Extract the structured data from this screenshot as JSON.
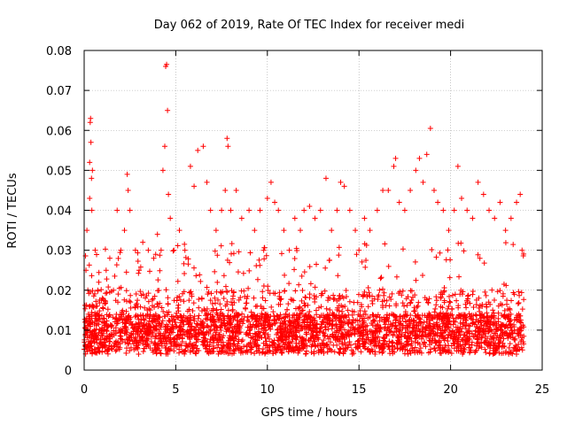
{
  "chart_data": {
    "type": "scatter",
    "title": "Day 062 of 2019, Rate Of TEC Index for receiver medi",
    "xlabel": "GPS time / hours",
    "ylabel": "ROTI / TECUs",
    "xlim": [
      0,
      25
    ],
    "ylim": [
      0,
      0.08
    ],
    "xticks": [
      0,
      5,
      10,
      15,
      20,
      25
    ],
    "xtick_labels": [
      "0",
      "5",
      "10",
      "15",
      "20",
      "25"
    ],
    "yticks": [
      0,
      0.01,
      0.02,
      0.03,
      0.04,
      0.05,
      0.06,
      0.07,
      0.08
    ],
    "ytick_labels": [
      "0",
      "0.01",
      "0.02",
      "0.03",
      "0.04",
      "0.05",
      "0.06",
      "0.07",
      "0.08"
    ],
    "grid": true,
    "marker": "+",
    "color": "#ff0000",
    "series": [
      {
        "name": "ROTI",
        "points": [
          [
            0.05,
            0.012
          ],
          [
            0.1,
            0.025
          ],
          [
            0.15,
            0.035
          ],
          [
            0.2,
            0.02
          ],
          [
            0.3,
            0.043
          ],
          [
            0.3,
            0.052
          ],
          [
            0.33,
            0.062
          ],
          [
            0.35,
            0.063
          ],
          [
            0.37,
            0.057
          ],
          [
            0.4,
            0.048
          ],
          [
            0.42,
            0.04
          ],
          [
            0.45,
            0.05
          ],
          [
            0.6,
            0.03
          ],
          [
            0.8,
            0.022
          ],
          [
            1.0,
            0.018
          ],
          [
            1.2,
            0.025
          ],
          [
            1.4,
            0.028
          ],
          [
            1.6,
            0.02
          ],
          [
            1.8,
            0.04
          ],
          [
            2.0,
            0.03
          ],
          [
            2.2,
            0.035
          ],
          [
            2.35,
            0.049
          ],
          [
            2.4,
            0.045
          ],
          [
            2.5,
            0.04
          ],
          [
            2.8,
            0.03
          ],
          [
            3.0,
            0.025
          ],
          [
            3.2,
            0.032
          ],
          [
            3.5,
            0.03
          ],
          [
            3.8,
            0.028
          ],
          [
            4.0,
            0.034
          ],
          [
            4.2,
            0.03
          ],
          [
            4.3,
            0.05
          ],
          [
            4.4,
            0.056
          ],
          [
            4.45,
            0.076
          ],
          [
            4.5,
            0.0765
          ],
          [
            4.55,
            0.065
          ],
          [
            4.6,
            0.044
          ],
          [
            4.7,
            0.038
          ],
          [
            4.9,
            0.03
          ],
          [
            5.2,
            0.035
          ],
          [
            5.5,
            0.03
          ],
          [
            5.8,
            0.051
          ],
          [
            6.0,
            0.046
          ],
          [
            6.2,
            0.055
          ],
          [
            6.5,
            0.056
          ],
          [
            6.7,
            0.047
          ],
          [
            6.9,
            0.04
          ],
          [
            7.2,
            0.035
          ],
          [
            7.5,
            0.04
          ],
          [
            7.7,
            0.045
          ],
          [
            7.8,
            0.058
          ],
          [
            7.85,
            0.056
          ],
          [
            8.0,
            0.04
          ],
          [
            8.3,
            0.045
          ],
          [
            8.6,
            0.038
          ],
          [
            9.0,
            0.04
          ],
          [
            9.3,
            0.035
          ],
          [
            9.6,
            0.04
          ],
          [
            9.8,
            0.03
          ],
          [
            10.0,
            0.043
          ],
          [
            10.2,
            0.047
          ],
          [
            10.4,
            0.042
          ],
          [
            10.6,
            0.04
          ],
          [
            10.9,
            0.035
          ],
          [
            11.2,
            0.03
          ],
          [
            11.5,
            0.038
          ],
          [
            11.8,
            0.035
          ],
          [
            12.0,
            0.04
          ],
          [
            12.3,
            0.041
          ],
          [
            12.6,
            0.038
          ],
          [
            12.9,
            0.04
          ],
          [
            13.2,
            0.048
          ],
          [
            13.5,
            0.035
          ],
          [
            13.8,
            0.04
          ],
          [
            14.0,
            0.047
          ],
          [
            14.2,
            0.046
          ],
          [
            14.5,
            0.04
          ],
          [
            14.8,
            0.035
          ],
          [
            15.0,
            0.03
          ],
          [
            15.3,
            0.038
          ],
          [
            15.6,
            0.035
          ],
          [
            16.0,
            0.04
          ],
          [
            16.3,
            0.045
          ],
          [
            16.6,
            0.045
          ],
          [
            16.9,
            0.051
          ],
          [
            17.0,
            0.053
          ],
          [
            17.2,
            0.042
          ],
          [
            17.5,
            0.04
          ],
          [
            17.8,
            0.045
          ],
          [
            18.1,
            0.05
          ],
          [
            18.3,
            0.053
          ],
          [
            18.5,
            0.047
          ],
          [
            18.7,
            0.054
          ],
          [
            18.9,
            0.0605
          ],
          [
            19.1,
            0.045
          ],
          [
            19.3,
            0.042
          ],
          [
            19.6,
            0.04
          ],
          [
            19.9,
            0.035
          ],
          [
            20.2,
            0.04
          ],
          [
            20.4,
            0.051
          ],
          [
            20.6,
            0.043
          ],
          [
            20.9,
            0.04
          ],
          [
            21.2,
            0.038
          ],
          [
            21.5,
            0.047
          ],
          [
            21.8,
            0.044
          ],
          [
            22.1,
            0.04
          ],
          [
            22.4,
            0.038
          ],
          [
            22.7,
            0.042
          ],
          [
            23.0,
            0.035
          ],
          [
            23.3,
            0.038
          ],
          [
            23.6,
            0.042
          ],
          [
            23.8,
            0.044
          ],
          [
            23.9,
            0.03
          ]
        ]
      }
    ],
    "dense_band": {
      "description_values": "bulk of ROTI values between 0.004 and 0.02 TECU/s for 0-24 h",
      "y_min": 0.004,
      "y_max": 0.02,
      "x_range": [
        0,
        24
      ]
    }
  }
}
